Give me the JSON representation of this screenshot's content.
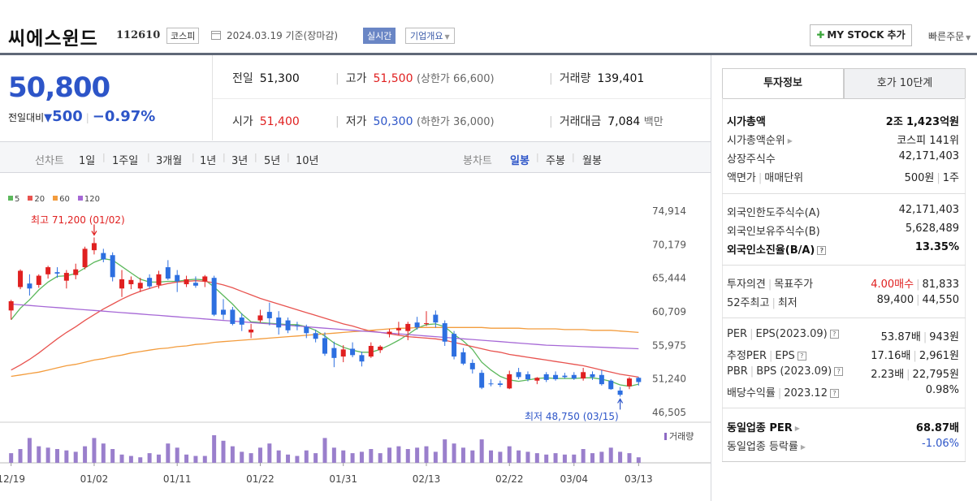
{
  "header": {
    "stock_name": "씨에스윈드",
    "stock_code": "112610",
    "market": "코스피",
    "date": "2024.03.19 기준(장마감)",
    "realtime_label": "실시간",
    "overview_label": "기업개요",
    "my_stock_label": "MY STOCK 추가",
    "quick_order_label": "빠른주문"
  },
  "quote": {
    "current_price": "50,800",
    "change_label": "전일대비",
    "change_amount": "500",
    "change_percent": "−0.97%",
    "prev_close_label": "전일",
    "prev_close": "51,300",
    "high_label": "고가",
    "high": "51,500",
    "upper_limit": "(상한가 66,600)",
    "volume_label": "거래량",
    "volume": "139,401",
    "open_label": "시가",
    "open": "51,400",
    "low_label": "저가",
    "low": "50,300",
    "lower_limit": "(하한가 36,000)",
    "amount_label": "거래대금",
    "amount": "7,084",
    "amount_unit": "백만"
  },
  "periods": {
    "line_label": "선차트",
    "line_items": [
      "1일",
      "1주일",
      "3개월",
      "1년",
      "3년",
      "5년",
      "10년"
    ],
    "candle_label": "봉차트",
    "candle_items": [
      "일봉",
      "주봉",
      "월봉"
    ],
    "selected": "일봉"
  },
  "legend": {
    "items": [
      {
        "label": "5",
        "color": "#5cb85c"
      },
      {
        "label": "20",
        "color": "#e8534f"
      },
      {
        "label": "60",
        "color": "#f39c3d"
      },
      {
        "label": "120",
        "color": "#a668d6"
      }
    ]
  },
  "annotations": {
    "high": "최고 71,200 (01/02)",
    "low": "최저 48,750 (03/15)",
    "volume_label": "거래량"
  },
  "chart_data": {
    "type": "candlestick",
    "y_ticks": [
      "74,914",
      "70,179",
      "65,444",
      "60,709",
      "55,975",
      "51,240",
      "46,505"
    ],
    "x_ticks": [
      "12/19",
      "01/02",
      "01/11",
      "01/22",
      "01/31",
      "02/13",
      "02/22",
      "03/04",
      "03/13"
    ],
    "ylim": [
      46505,
      74914
    ],
    "up_color": "#e02020",
    "down_color": "#2d6fe0",
    "candles": [
      {
        "o": 60900,
        "h": 62400,
        "l": 59600,
        "c": 62200
      },
      {
        "o": 64200,
        "h": 66700,
        "l": 63900,
        "c": 66500
      },
      {
        "o": 64700,
        "h": 66000,
        "l": 63000,
        "c": 64000
      },
      {
        "o": 64500,
        "h": 66000,
        "l": 64100,
        "c": 65800
      },
      {
        "o": 66000,
        "h": 67200,
        "l": 65400,
        "c": 67000
      },
      {
        "o": 66300,
        "h": 67000,
        "l": 65500,
        "c": 66100
      },
      {
        "o": 65100,
        "h": 66600,
        "l": 64000,
        "c": 66200
      },
      {
        "o": 65900,
        "h": 67500,
        "l": 65300,
        "c": 66700
      },
      {
        "o": 67000,
        "h": 69900,
        "l": 66700,
        "c": 69600
      },
      {
        "o": 69400,
        "h": 71200,
        "l": 68800,
        "c": 70400
      },
      {
        "o": 69000,
        "h": 69600,
        "l": 67700,
        "c": 68100
      },
      {
        "o": 68700,
        "h": 69100,
        "l": 65000,
        "c": 65600
      },
      {
        "o": 64000,
        "h": 66600,
        "l": 62800,
        "c": 65300
      },
      {
        "o": 64600,
        "h": 65700,
        "l": 63900,
        "c": 65200
      },
      {
        "o": 64000,
        "h": 65500,
        "l": 63500,
        "c": 64800
      },
      {
        "o": 65500,
        "h": 66000,
        "l": 64000,
        "c": 64300
      },
      {
        "o": 64500,
        "h": 66500,
        "l": 64000,
        "c": 66000
      },
      {
        "o": 67000,
        "h": 68000,
        "l": 65200,
        "c": 65400
      },
      {
        "o": 65900,
        "h": 66600,
        "l": 63500,
        "c": 65000
      },
      {
        "o": 64600,
        "h": 65800,
        "l": 64200,
        "c": 65300
      },
      {
        "o": 64800,
        "h": 65700,
        "l": 64100,
        "c": 64400
      },
      {
        "o": 65000,
        "h": 65900,
        "l": 64200,
        "c": 65700
      },
      {
        "o": 65500,
        "h": 65800,
        "l": 60100,
        "c": 60300
      },
      {
        "o": 61000,
        "h": 62500,
        "l": 59600,
        "c": 60300
      },
      {
        "o": 61000,
        "h": 61400,
        "l": 58800,
        "c": 59000
      },
      {
        "o": 59900,
        "h": 60500,
        "l": 58000,
        "c": 58900
      },
      {
        "o": 57800,
        "h": 59000,
        "l": 57000,
        "c": 58200
      },
      {
        "o": 59500,
        "h": 61000,
        "l": 59200,
        "c": 60200
      },
      {
        "o": 60700,
        "h": 62000,
        "l": 58800,
        "c": 59800
      },
      {
        "o": 59900,
        "h": 60800,
        "l": 57500,
        "c": 58500
      },
      {
        "o": 59500,
        "h": 59900,
        "l": 57700,
        "c": 58100
      },
      {
        "o": 58800,
        "h": 59300,
        "l": 58100,
        "c": 58700
      },
      {
        "o": 58600,
        "h": 58900,
        "l": 57000,
        "c": 57700
      },
      {
        "o": 57700,
        "h": 58200,
        "l": 56400,
        "c": 56900
      },
      {
        "o": 57000,
        "h": 57800,
        "l": 54500,
        "c": 54800
      },
      {
        "o": 55600,
        "h": 56500,
        "l": 52900,
        "c": 54200
      },
      {
        "o": 54400,
        "h": 56000,
        "l": 53600,
        "c": 55400
      },
      {
        "o": 55500,
        "h": 56400,
        "l": 54300,
        "c": 54600
      },
      {
        "o": 54600,
        "h": 55100,
        "l": 53000,
        "c": 53700
      },
      {
        "o": 54400,
        "h": 56400,
        "l": 54200,
        "c": 55900
      },
      {
        "o": 55300,
        "h": 56000,
        "l": 54900,
        "c": 55800
      },
      {
        "o": 57600,
        "h": 58300,
        "l": 57100,
        "c": 57900
      },
      {
        "o": 58100,
        "h": 59300,
        "l": 57400,
        "c": 58400
      },
      {
        "o": 58000,
        "h": 59300,
        "l": 56700,
        "c": 59000
      },
      {
        "o": 59200,
        "h": 60000,
        "l": 58200,
        "c": 58500
      },
      {
        "o": 59100,
        "h": 60800,
        "l": 58700,
        "c": 59100
      },
      {
        "o": 60300,
        "h": 60900,
        "l": 58500,
        "c": 59200
      },
      {
        "o": 59100,
        "h": 59500,
        "l": 55900,
        "c": 56500
      },
      {
        "o": 57600,
        "h": 58000,
        "l": 54000,
        "c": 54400
      },
      {
        "o": 55000,
        "h": 55600,
        "l": 53200,
        "c": 53400
      },
      {
        "o": 53500,
        "h": 54000,
        "l": 52000,
        "c": 52600
      },
      {
        "o": 52100,
        "h": 52500,
        "l": 49800,
        "c": 50000
      },
      {
        "o": 50600,
        "h": 51200,
        "l": 50200,
        "c": 50500
      },
      {
        "o": 50600,
        "h": 51000,
        "l": 50100,
        "c": 50400
      },
      {
        "o": 49900,
        "h": 52400,
        "l": 49800,
        "c": 51900
      },
      {
        "o": 52200,
        "h": 52800,
        "l": 51200,
        "c": 51500
      },
      {
        "o": 51900,
        "h": 52300,
        "l": 50900,
        "c": 51200
      },
      {
        "o": 51000,
        "h": 51500,
        "l": 50500,
        "c": 51400
      },
      {
        "o": 51900,
        "h": 52200,
        "l": 50800,
        "c": 51100
      },
      {
        "o": 51800,
        "h": 52300,
        "l": 51000,
        "c": 51200
      },
      {
        "o": 51700,
        "h": 52100,
        "l": 51300,
        "c": 51500
      },
      {
        "o": 51800,
        "h": 52200,
        "l": 51100,
        "c": 51300
      },
      {
        "o": 51300,
        "h": 52800,
        "l": 51000,
        "c": 52200
      },
      {
        "o": 51900,
        "h": 52300,
        "l": 51100,
        "c": 51500
      },
      {
        "o": 51800,
        "h": 52500,
        "l": 50300,
        "c": 50500
      },
      {
        "o": 51000,
        "h": 51200,
        "l": 49700,
        "c": 49800
      },
      {
        "o": 49600,
        "h": 50100,
        "l": 48750,
        "c": 49000
      },
      {
        "o": 50200,
        "h": 51500,
        "l": 49800,
        "c": 51300
      },
      {
        "o": 51400,
        "h": 51500,
        "l": 50300,
        "c": 50800
      }
    ],
    "ma_series": [
      {
        "name": "5",
        "values": [
          59600,
          61200,
          62400,
          63800,
          64900,
          65700,
          65800,
          66100,
          66900,
          67700,
          68200,
          68000,
          67100,
          66200,
          65300,
          64900,
          64900,
          65000,
          65000,
          65200,
          65300,
          65200,
          64200,
          63000,
          61800,
          60400,
          59300,
          59200,
          59100,
          59000,
          58900,
          58900,
          58600,
          58100,
          57300,
          56300,
          55700,
          55300,
          55000,
          55000,
          55400,
          56000,
          56700,
          57500,
          58400,
          58900,
          59000,
          58600,
          57500,
          56600,
          55400,
          53600,
          52500,
          51600,
          51100,
          50900,
          51100,
          51300,
          51400,
          51300,
          51300,
          51300,
          51400,
          51400,
          51200,
          50900,
          50400,
          50200,
          50500
        ]
      },
      {
        "name": "20",
        "values": [
          52500,
          53200,
          54000,
          54900,
          55900,
          56900,
          57800,
          58600,
          59500,
          60300,
          61100,
          61800,
          62500,
          63100,
          63600,
          64000,
          64400,
          64700,
          64900,
          65000,
          65100,
          65000,
          64800,
          64500,
          64100,
          63600,
          63100,
          62600,
          62200,
          61800,
          61400,
          61000,
          60600,
          60200,
          59800,
          59400,
          59000,
          58700,
          58300,
          58000,
          57800,
          57600,
          57400,
          57200,
          57100,
          57000,
          56900,
          56700,
          56400,
          56100,
          55800,
          55500,
          55200,
          55000,
          54700,
          54500,
          54300,
          54100,
          53900,
          53700,
          53500,
          53300,
          53100,
          52800,
          52500,
          52200,
          51900,
          51700,
          51500
        ]
      },
      {
        "name": "60",
        "values": [
          51600,
          51800,
          52000,
          52200,
          52500,
          52800,
          53100,
          53300,
          53600,
          53900,
          54100,
          54400,
          54600,
          54900,
          55100,
          55300,
          55500,
          55600,
          55800,
          55900,
          56100,
          56200,
          56400,
          56500,
          56600,
          56700,
          56800,
          56900,
          57000,
          57100,
          57200,
          57300,
          57400,
          57500,
          57600,
          57700,
          57800,
          57900,
          58000,
          58100,
          58200,
          58300,
          58400,
          58400,
          58500,
          58500,
          58500,
          58500,
          58500,
          58500,
          58500,
          58500,
          58400,
          58400,
          58400,
          58400,
          58300,
          58300,
          58300,
          58300,
          58200,
          58200,
          58200,
          58100,
          58100,
          58100,
          58000,
          57900,
          57800
        ]
      },
      {
        "name": "120",
        "values": [
          61800,
          61700,
          61600,
          61500,
          61400,
          61300,
          61200,
          61100,
          61000,
          60900,
          60800,
          60700,
          60600,
          60500,
          60400,
          60300,
          60200,
          60100,
          60000,
          59900,
          59800,
          59700,
          59600,
          59500,
          59400,
          59300,
          59200,
          59100,
          59000,
          58900,
          58800,
          58700,
          58600,
          58500,
          58400,
          58300,
          58200,
          58100,
          58000,
          57900,
          57800,
          57700,
          57600,
          57500,
          57400,
          57300,
          57200,
          57100,
          57000,
          56900,
          56800,
          56700,
          56600,
          56500,
          56400,
          56300,
          56200,
          56100,
          56000,
          55950,
          55900,
          55850,
          55800,
          55750,
          55700,
          55650,
          55600,
          55550,
          55500
        ]
      }
    ],
    "volumes": [
      0.35,
      0.5,
      0.9,
      0.6,
      0.55,
      0.5,
      0.45,
      0.4,
      0.6,
      0.9,
      0.7,
      0.5,
      0.3,
      0.25,
      0.2,
      0.35,
      0.3,
      0.7,
      0.55,
      0.3,
      0.25,
      0.25,
      1.0,
      0.8,
      0.6,
      0.4,
      0.35,
      0.55,
      0.7,
      0.45,
      0.3,
      0.25,
      0.45,
      0.35,
      0.9,
      0.55,
      0.45,
      0.35,
      0.4,
      0.5,
      0.35,
      0.55,
      0.6,
      0.5,
      0.55,
      0.6,
      0.4,
      0.85,
      0.7,
      0.55,
      0.45,
      0.85,
      0.45,
      0.4,
      0.6,
      0.45,
      0.4,
      0.35,
      0.3,
      0.35,
      0.3,
      0.3,
      0.5,
      0.35,
      0.4,
      0.55,
      0.4,
      0.35,
      0.2
    ]
  },
  "right_panel": {
    "tab_active": "투자정보",
    "tab_inactive": "호가 10단계",
    "market_cap_label": "시가총액",
    "market_cap_v1": "2조",
    "market_cap_v2": "1,423억원",
    "market_cap_rank_label": "시가총액순위",
    "market_cap_rank": "코스피 141위",
    "shares_label": "상장주식수",
    "shares": "42,171,403",
    "par_label": "액면가",
    "unit_label": "매매단위",
    "par": "500원",
    "unit": "1주",
    "foreign_limit_label": "외국인한도주식수(A)",
    "foreign_limit": "42,171,403",
    "foreign_hold_label": "외국인보유주식수(B)",
    "foreign_hold": "5,628,489",
    "foreign_ratio_label": "외국인소진율(B/A)",
    "foreign_ratio": "13.35%",
    "opinion_label": "투자의견",
    "target_label": "목표주가",
    "opinion": "4.00매수",
    "target": "81,833",
    "w52_label": "52주최고",
    "w52_low_label": "최저",
    "w52_high": "89,400",
    "w52_low": "44,550",
    "per_label": "PER",
    "eps_label": "EPS(2023.09)",
    "per": "53.87배",
    "eps": "943원",
    "est_per_label": "추정PER",
    "est_eps_label": "EPS",
    "est_per": "17.16배",
    "est_eps": "2,961원",
    "pbr_label": "PBR",
    "bps_label": "BPS (2023.09)",
    "pbr": "2.23배",
    "bps": "22,795원",
    "div_label": "배당수익률",
    "div_date": "2023.12",
    "div": "0.98%",
    "sector_per_label": "동일업종 PER",
    "sector_per": "68.87배",
    "sector_change_label": "동일업종 등락률",
    "sector_change": "-1.06%"
  }
}
